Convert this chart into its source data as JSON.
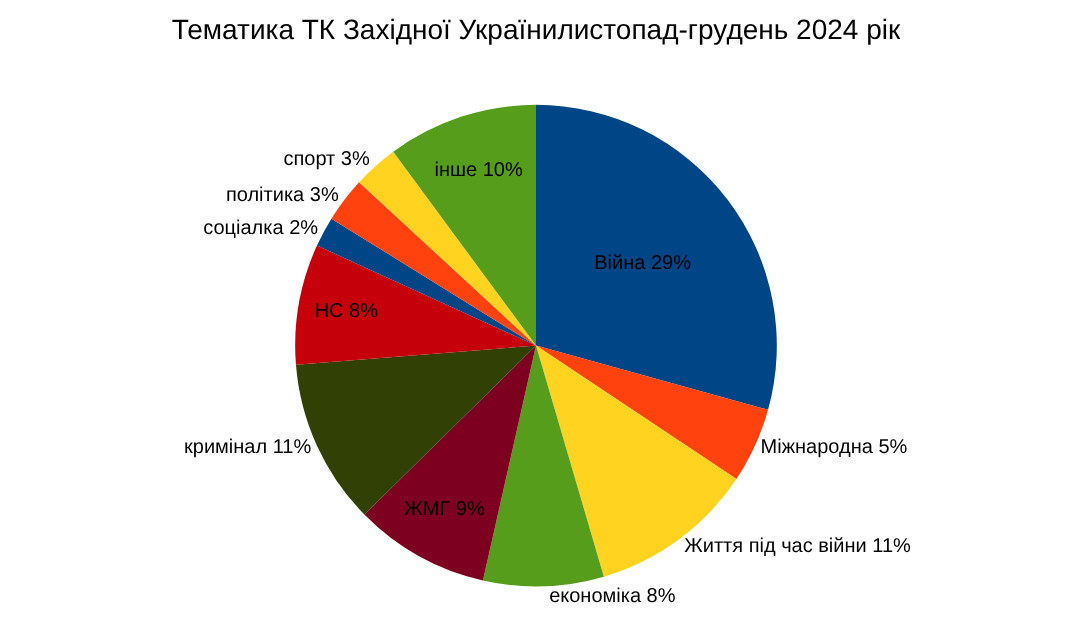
{
  "chart_data": {
    "type": "pie",
    "title": "Тематика ТК Західної Українилистопад-грудень 2024 рік",
    "categories": [
      "Війна",
      "Міжнародна",
      "Життя під час війни",
      "економіка",
      "ЖМГ",
      "кримінал",
      "НС",
      "соціалка",
      "політика",
      "спорт",
      "інше"
    ],
    "values": [
      29,
      5,
      11,
      8,
      9,
      11,
      8,
      2,
      3,
      3,
      10
    ],
    "value_labels": [
      "29%",
      "5%",
      "11%",
      "8%",
      "9%",
      "11%",
      "8%",
      "2%",
      "3%",
      "3%",
      "10%"
    ],
    "colors": [
      "#004586",
      "#ff420e",
      "#ffd320",
      "#579d1c",
      "#7e0021",
      "#314004",
      "#c5000b",
      "#004586",
      "#ff420e",
      "#ffd320",
      "#579d1c"
    ],
    "legend": false
  }
}
